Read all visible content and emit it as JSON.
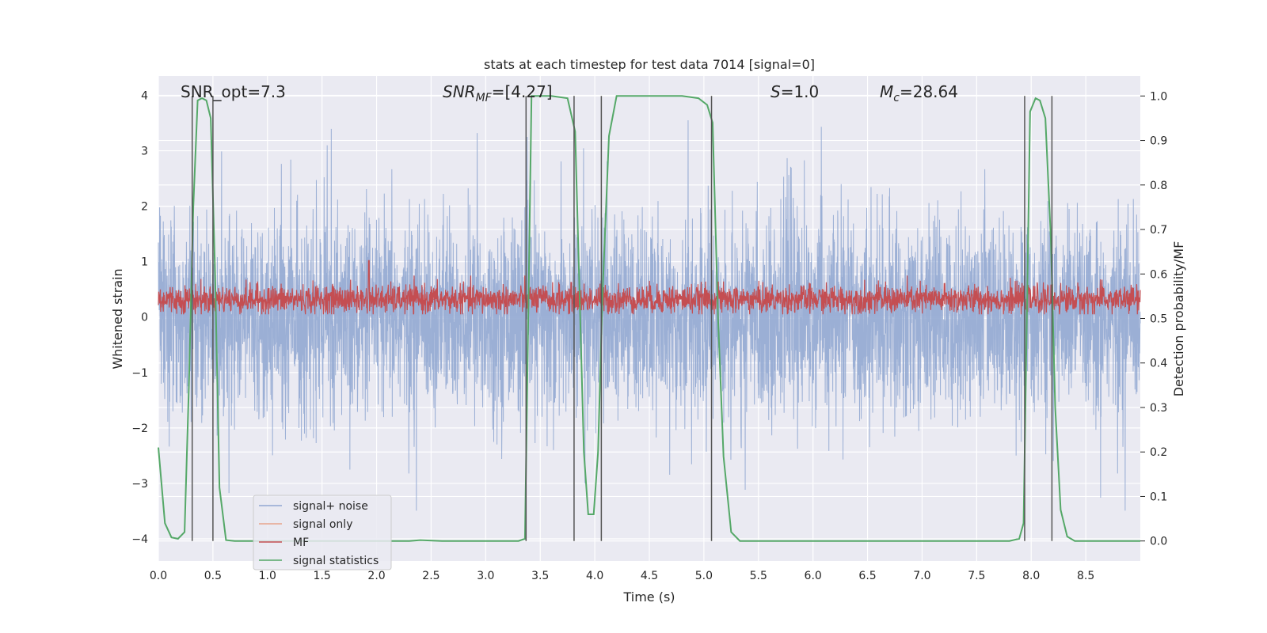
{
  "chart_data": {
    "type": "line",
    "title": "stats at each timestep for test data 7014 [signal=0]",
    "xlabel": "Time (s)",
    "ylabel": "Whitened strain",
    "y2label": "Detection probability/MF",
    "xlim": [
      0.0,
      9.0
    ],
    "ylim": [
      -4.4,
      4.35
    ],
    "y2lim": [
      -0.045,
      1.045
    ],
    "xticks": [
      "0.0",
      "0.5",
      "1.0",
      "1.5",
      "2.0",
      "2.5",
      "3.0",
      "3.5",
      "4.0",
      "4.5",
      "5.0",
      "5.5",
      "6.0",
      "6.5",
      "7.0",
      "7.5",
      "8.0",
      "8.5"
    ],
    "yticks": [
      "−4",
      "−3",
      "−2",
      "−1",
      "0",
      "1",
      "2",
      "3",
      "4"
    ],
    "y2ticks": [
      "0.0",
      "0.1",
      "0.2",
      "0.3",
      "0.4",
      "0.5",
      "0.6",
      "0.7",
      "0.8",
      "0.9",
      "1.0"
    ],
    "annotations": {
      "snr_opt": "SNR_opt=7.3",
      "snr_mf_sym": "SNR",
      "snr_mf_sub": "MF",
      "snr_mf_val": "=[4.27]",
      "s_sym": "S",
      "s_val": "=1.0",
      "mc_sym": "M",
      "mc_sub": "c",
      "mc_val": "=28.64"
    },
    "legend": [
      "signal+ noise",
      "signal only",
      "MF",
      "signal statistics"
    ],
    "colors": {
      "signal_noise": "#92a8d1",
      "signal_only": "#e8a48c",
      "mf": "#c44e52",
      "stats": "#55a868",
      "vline": "#555555",
      "background": "#eaeaf2"
    },
    "noise_envelope": {
      "mean": 0.0,
      "std": 0.85,
      "spike_max": 3.55,
      "spike_min": -4.0
    },
    "mf_band": {
      "center": 0.32,
      "range": [
        0.05,
        0.75
      ],
      "peaks": [
        {
          "x": 1.93,
          "y": 1.02
        }
      ]
    },
    "signal_statistics": {
      "x": [
        0.0,
        0.06,
        0.12,
        0.18,
        0.24,
        0.28,
        0.32,
        0.36,
        0.4,
        0.44,
        0.48,
        0.52,
        0.56,
        0.62,
        0.7,
        0.8,
        1.0,
        1.2,
        1.6,
        2.0,
        2.3,
        2.4,
        2.6,
        3.0,
        3.3,
        3.36,
        3.39,
        3.42,
        3.45,
        3.6,
        3.75,
        3.82,
        3.9,
        3.94,
        3.99,
        4.03,
        4.07,
        4.13,
        4.2,
        4.5,
        4.8,
        4.95,
        5.03,
        5.08,
        5.13,
        5.18,
        5.25,
        5.33,
        5.5,
        6.0,
        6.5,
        7.0,
        7.5,
        7.8,
        7.89,
        7.93,
        7.96,
        7.99,
        8.04,
        8.08,
        8.13,
        8.18,
        8.22,
        8.27,
        8.33,
        8.4,
        8.5,
        9.0
      ],
      "y": [
        0.21,
        0.04,
        0.008,
        0.005,
        0.02,
        0.35,
        0.75,
        0.99,
        0.995,
        0.99,
        0.95,
        0.6,
        0.12,
        0.002,
        0.0,
        0.0,
        0.0,
        0.0,
        0.0,
        0.0,
        0.0,
        0.002,
        0.0,
        0.0,
        0.0,
        0.005,
        0.5,
        1.0,
        1.0,
        1.0,
        0.995,
        0.92,
        0.2,
        0.06,
        0.06,
        0.2,
        0.55,
        0.91,
        1.0,
        1.0,
        1.0,
        0.995,
        0.98,
        0.94,
        0.5,
        0.19,
        0.02,
        0.0,
        0.0,
        0.0,
        0.0,
        0.0,
        0.0,
        0.0,
        0.005,
        0.04,
        0.5,
        0.965,
        0.995,
        0.99,
        0.95,
        0.68,
        0.3,
        0.07,
        0.01,
        0.0,
        0.0,
        0.0
      ]
    },
    "vlines": [
      0.31,
      0.5,
      3.37,
      3.81,
      4.06,
      5.07,
      7.94,
      8.19
    ]
  }
}
